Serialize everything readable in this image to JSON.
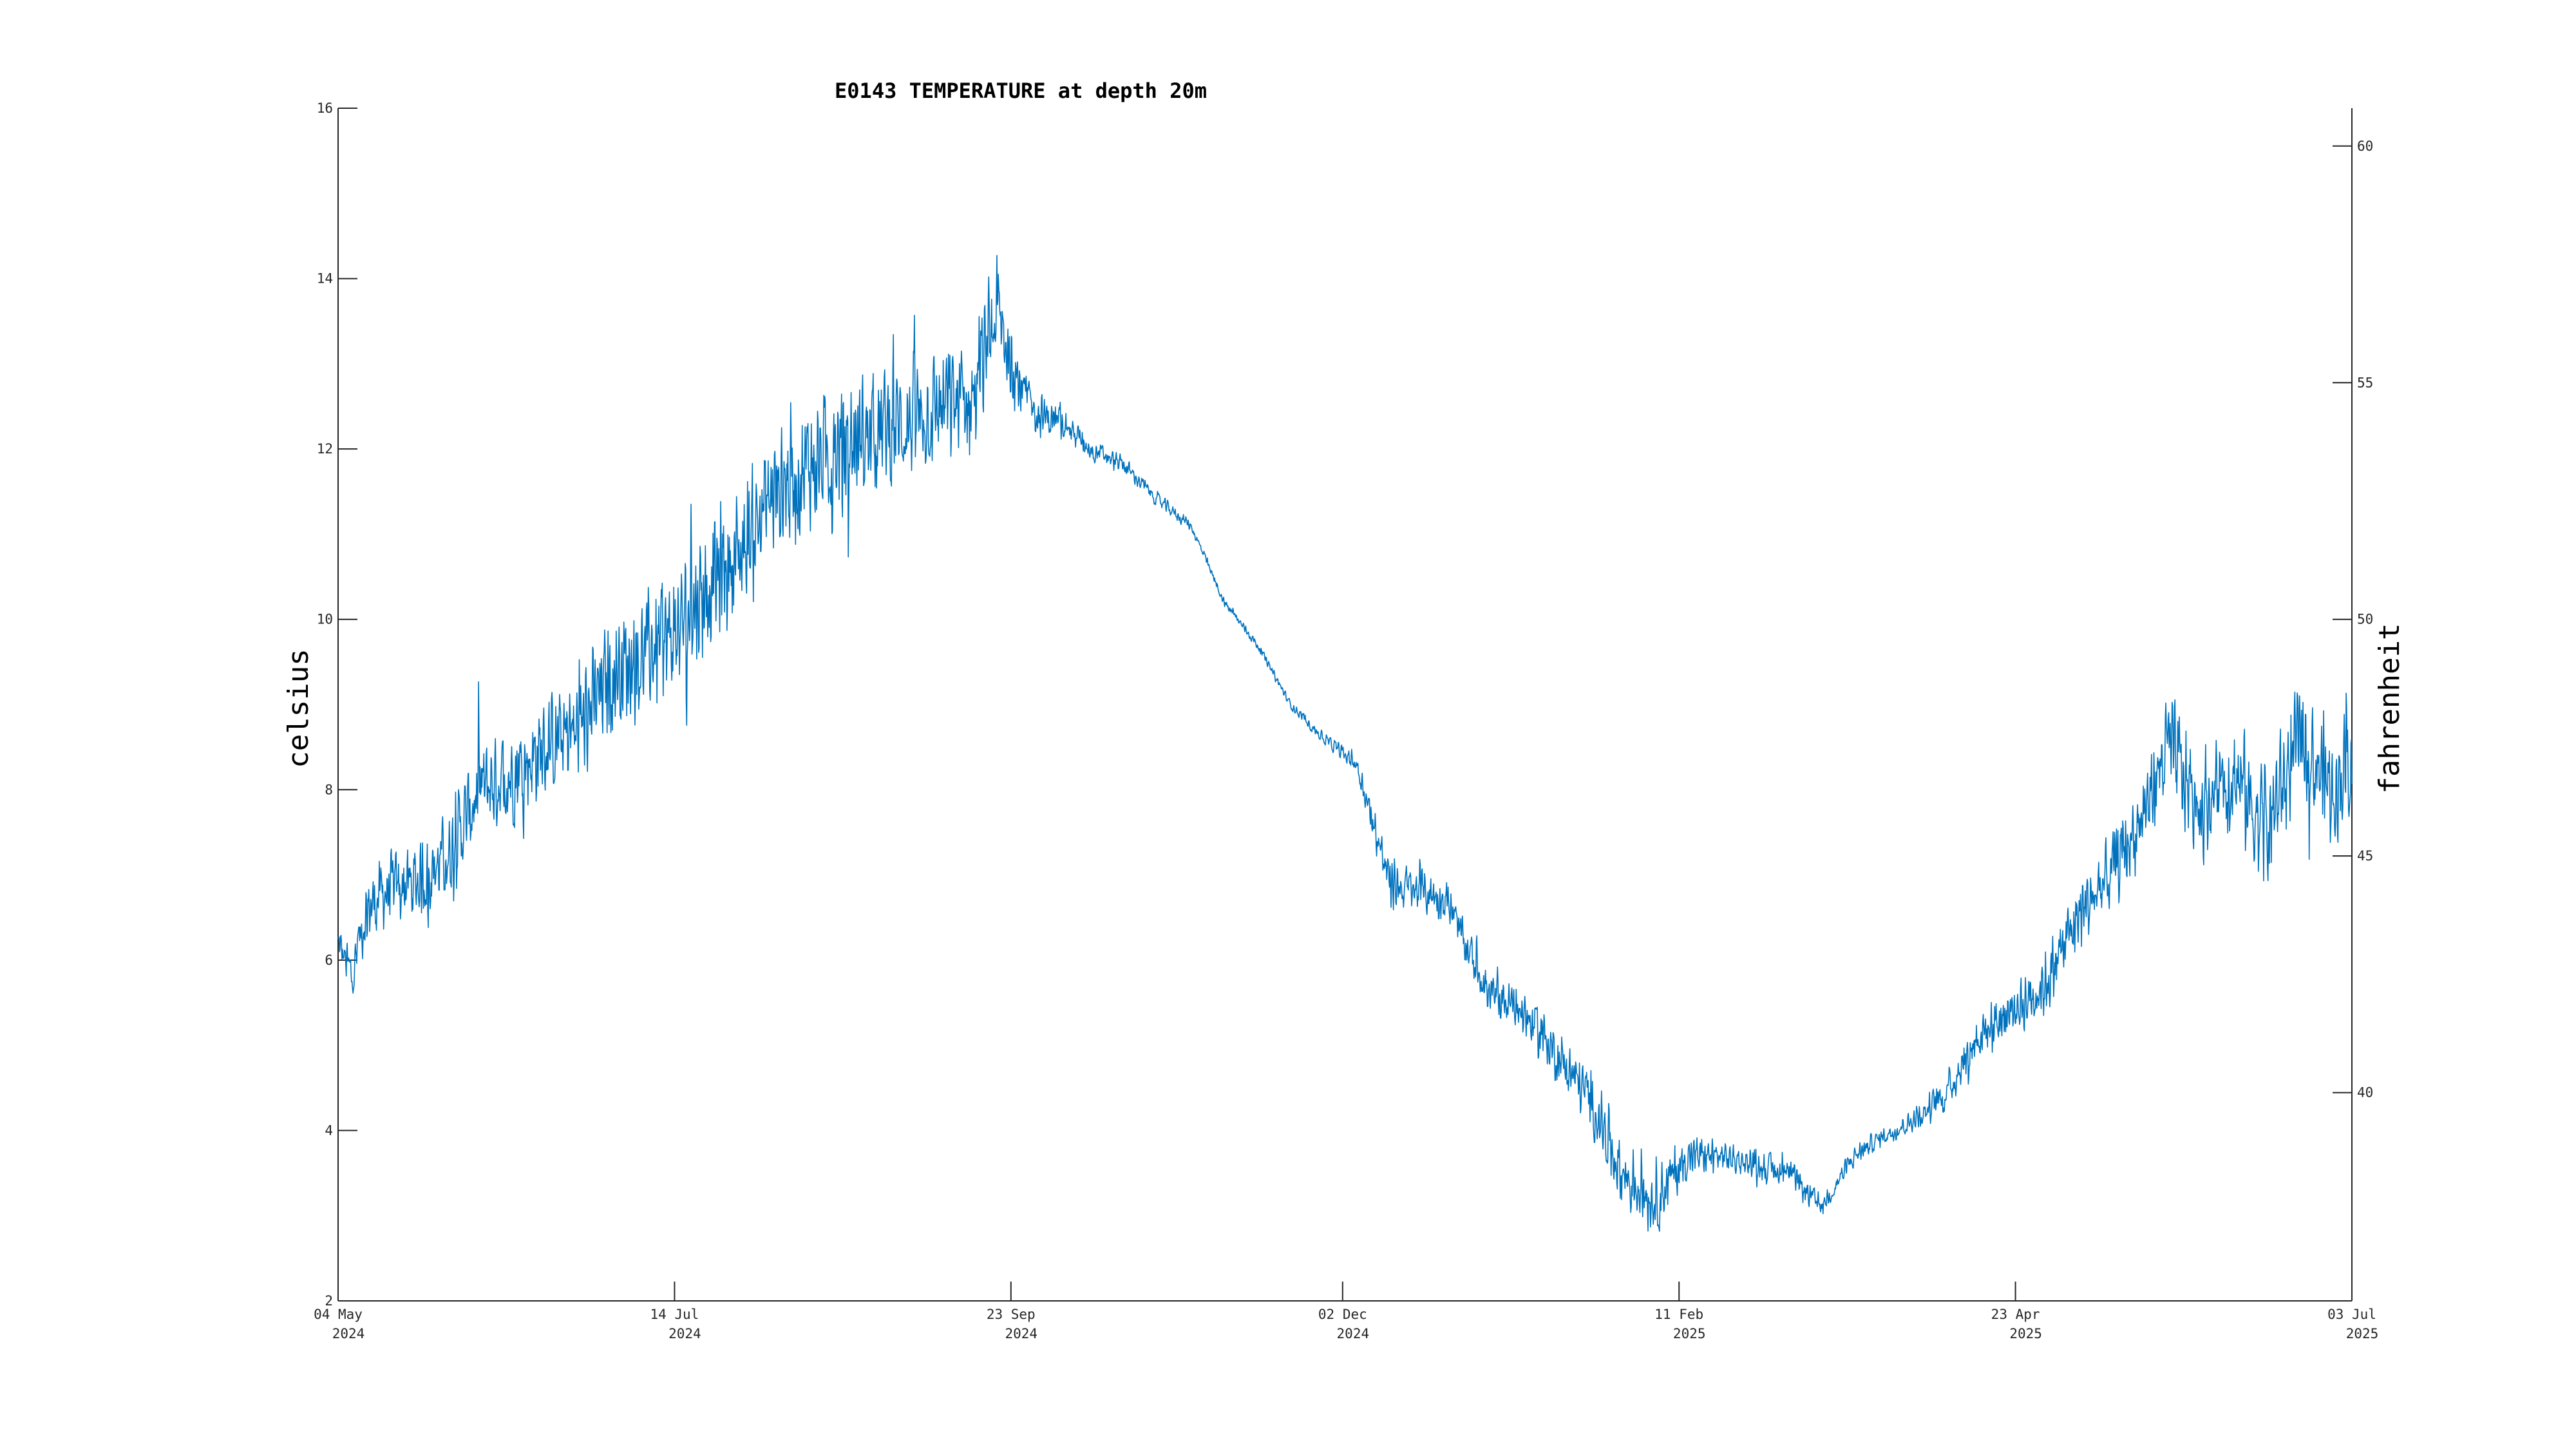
{
  "chart_data": {
    "type": "line",
    "title": "E0143 TEMPERATURE at depth 20m",
    "ylabel": "celsius",
    "ylabel_right": "fahrenheit",
    "xlim": [
      "2024-05-04",
      "2025-07-03"
    ],
    "ylim": [
      2,
      16
    ],
    "ylim_right": [
      35.6,
      60.8
    ],
    "grid": false,
    "legend": "none",
    "line_color": "#0072bd",
    "x_ticks": [
      {
        "date": "2024-05-04",
        "day": "04 May",
        "year": "2024"
      },
      {
        "date": "2024-07-14",
        "day": "14 Jul",
        "year": "2024"
      },
      {
        "date": "2024-09-23",
        "day": "23 Sep",
        "year": "2024"
      },
      {
        "date": "2024-12-02",
        "day": "02 Dec",
        "year": "2024"
      },
      {
        "date": "2025-02-11",
        "day": "11 Feb",
        "year": "2025"
      },
      {
        "date": "2025-04-23",
        "day": "23 Apr",
        "year": "2025"
      },
      {
        "date": "2025-07-03",
        "day": "03 Jul",
        "year": "2025"
      }
    ],
    "y_ticks": [
      "2",
      "4",
      "6",
      "8",
      "10",
      "12",
      "14",
      "16"
    ],
    "y_ticks_right": [
      "40",
      "45",
      "50",
      "55",
      "60"
    ],
    "series": [
      {
        "x": [
          "2024-05-04",
          "2024-05-07",
          "2024-05-10",
          "2024-05-14",
          "2024-05-20",
          "2024-05-27",
          "2024-06-03",
          "2024-06-10",
          "2024-06-17",
          "2024-06-24",
          "2024-07-01",
          "2024-07-08",
          "2024-07-14",
          "2024-07-21",
          "2024-07-28",
          "2024-08-04",
          "2024-08-11",
          "2024-08-18",
          "2024-08-25",
          "2024-09-01",
          "2024-09-08",
          "2024-09-15",
          "2024-09-20",
          "2024-09-25",
          "2024-09-29",
          "2024-10-04",
          "2024-10-10",
          "2024-10-17",
          "2024-10-24",
          "2024-10-31",
          "2024-11-07",
          "2024-11-14",
          "2024-11-21",
          "2024-11-28",
          "2024-12-05",
          "2024-12-12",
          "2024-12-19",
          "2024-12-24",
          "2024-12-27",
          "2025-01-02",
          "2025-01-09",
          "2025-01-16",
          "2025-01-23",
          "2025-01-30",
          "2025-02-06",
          "2025-02-13",
          "2025-02-20",
          "2025-02-27",
          "2025-03-06",
          "2025-03-13",
          "2025-03-20",
          "2025-03-25",
          "2025-04-01",
          "2025-04-08",
          "2025-04-15",
          "2025-04-22",
          "2025-04-29",
          "2025-05-06",
          "2025-05-13",
          "2025-05-20",
          "2025-05-25",
          "2025-06-01",
          "2025-06-08",
          "2025-06-15",
          "2025-06-22",
          "2025-06-29",
          "2025-07-03"
        ],
        "y": [
          6.2,
          5.8,
          6.6,
          6.8,
          6.9,
          7.2,
          8.0,
          8.2,
          8.5,
          8.7,
          9.4,
          9.6,
          9.8,
          10.4,
          10.8,
          11.5,
          11.8,
          12.0,
          12.2,
          12.3,
          12.5,
          12.6,
          13.6,
          12.7,
          12.4,
          12.3,
          12.0,
          11.8,
          11.4,
          11.1,
          10.2,
          9.7,
          9.0,
          8.6,
          8.3,
          6.9,
          6.8,
          6.7,
          6.3,
          5.6,
          5.4,
          4.9,
          4.4,
          3.5,
          3.2,
          3.7,
          3.7,
          3.6,
          3.5,
          3.1,
          3.7,
          3.9,
          4.1,
          4.4,
          5.1,
          5.4,
          5.7,
          6.5,
          7.0,
          7.7,
          8.5,
          7.8,
          8.2,
          7.5,
          8.6,
          8.0,
          8.4
        ],
        "amp": [
          0.3,
          0.4,
          0.45,
          0.5,
          0.55,
          0.6,
          0.65,
          0.7,
          0.7,
          0.75,
          0.8,
          0.8,
          0.85,
          0.9,
          0.9,
          0.95,
          0.9,
          0.9,
          0.85,
          0.85,
          0.8,
          0.85,
          0.8,
          0.4,
          0.3,
          0.2,
          0.15,
          0.12,
          0.1,
          0.08,
          0.06,
          0.06,
          0.06,
          0.08,
          0.15,
          0.35,
          0.3,
          0.3,
          0.25,
          0.3,
          0.35,
          0.35,
          0.4,
          0.5,
          0.5,
          0.3,
          0.2,
          0.2,
          0.2,
          0.15,
          0.15,
          0.12,
          0.15,
          0.25,
          0.35,
          0.4,
          0.45,
          0.5,
          0.55,
          0.6,
          0.75,
          0.75,
          0.8,
          0.85,
          0.85,
          0.8,
          0.7
        ]
      }
    ]
  }
}
